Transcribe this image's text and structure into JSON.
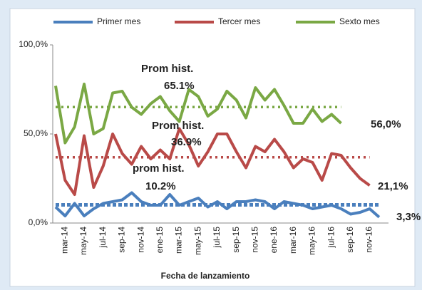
{
  "chart_data": {
    "type": "line",
    "x_axis_label": "Fecha de lanzamiento",
    "categories": [
      null,
      "mar-14",
      null,
      "may-14",
      null,
      "jul-14",
      null,
      "sep-14",
      null,
      "nov-14",
      null,
      "ene-15",
      null,
      "mar-15",
      null,
      "may-15",
      null,
      "jul-15",
      null,
      "sep-15",
      null,
      "nov-15",
      null,
      "ene-16",
      null,
      "mar-16",
      null,
      "may-16",
      null,
      "jul-16",
      null,
      "sep-16",
      null,
      "nov-16",
      null
    ],
    "ylim": [
      0,
      100
    ],
    "yticks": [
      {
        "value": 0,
        "label": "0,0%"
      },
      {
        "value": 50,
        "label": "50,0%"
      },
      {
        "value": 100,
        "label": "100,0%"
      }
    ],
    "series": [
      {
        "name": "Primer mes",
        "color": "#4a7fbd",
        "end_label": "3,3%",
        "values": [
          9,
          4,
          11,
          4,
          8,
          11,
          12,
          13,
          17,
          12,
          10,
          10,
          16,
          10,
          12,
          14,
          9,
          12,
          8,
          12,
          12,
          13,
          12,
          8,
          12,
          11,
          10,
          8,
          9,
          10,
          8,
          5,
          6,
          8,
          3.3
        ],
        "average": {
          "text": "prom hist.",
          "value_label": "10.2%",
          "value": 10.2
        }
      },
      {
        "name": "Tercer mes",
        "color": "#b94a48",
        "end_label": "21,1%",
        "values": [
          50,
          24,
          16,
          49,
          20,
          32,
          50,
          39,
          33,
          43,
          36,
          41,
          36,
          53,
          44,
          32,
          40,
          50,
          50,
          40,
          31,
          43,
          40,
          47,
          40,
          31,
          36,
          34,
          24,
          39,
          38,
          31,
          25,
          21.1,
          null
        ],
        "average": {
          "text": "Prom hist.",
          "value_label": "36.9%",
          "value": 36.9
        }
      },
      {
        "name": "Sexto mes",
        "color": "#7aa844",
        "end_label": "56,0%",
        "values": [
          77,
          45,
          54,
          78,
          50,
          53,
          73,
          74,
          65,
          61,
          67,
          71,
          63,
          57,
          75,
          71,
          60,
          64,
          74,
          69,
          59,
          76,
          69,
          75,
          66,
          56,
          56,
          64,
          57,
          61,
          56,
          null,
          null,
          null,
          null
        ],
        "average": {
          "text": "Prom hist.",
          "value_label": "65.1%",
          "value": 65.1
        }
      }
    ]
  }
}
